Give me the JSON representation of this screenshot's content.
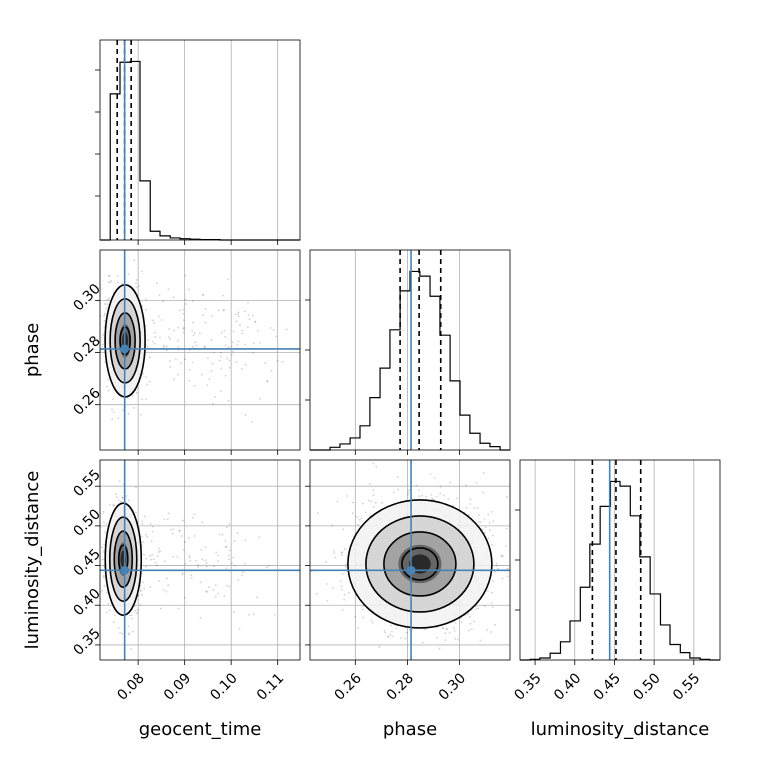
{
  "chart_data": {
    "type": "scatter",
    "kind": "corner-plot",
    "parameters": [
      "geocent_time",
      "phase",
      "luminosity_distance"
    ],
    "axis_labels": {
      "geocent_time": "geocent_time",
      "phase": "phase",
      "luminosity_distance": "luminosity_distance"
    },
    "ranges": {
      "geocent_time": [
        0.0718,
        0.1148
      ],
      "phase": [
        0.2426,
        0.3194
      ],
      "luminosity_distance": [
        0.331,
        0.583
      ]
    },
    "ticks": {
      "geocent_time": {
        "values": [
          0.08,
          0.09,
          0.1,
          0.11
        ],
        "labels": [
          "0.08",
          "0.09",
          "0.10",
          "0.11"
        ]
      },
      "phase": {
        "values": [
          0.26,
          0.28,
          0.3
        ],
        "labels": [
          "0.26",
          "0.28",
          "0.30"
        ]
      },
      "luminosity_distance": {
        "values": [
          0.35,
          0.4,
          0.45,
          0.5,
          0.55
        ],
        "labels": [
          "0.35",
          "0.40",
          "0.45",
          "0.50",
          "0.55"
        ]
      }
    },
    "truth": {
      "geocent_time": 0.0771,
      "phase": 0.2814,
      "luminosity_distance": 0.444
    },
    "quantiles": {
      "geocent_time": [
        0.0755,
        0.0771,
        0.0785
      ],
      "phase": [
        0.2772,
        0.2845,
        0.2928
      ],
      "luminosity_distance": [
        0.4222,
        0.4519,
        0.4831
      ]
    },
    "histograms": {
      "geocent_time": {
        "edges": [
          0.0718,
          0.074,
          0.0761,
          0.0783,
          0.0804,
          0.0826,
          0.0847,
          0.0869,
          0.089,
          0.0912,
          0.0933,
          0.0955,
          0.0976,
          0.0998,
          0.1019,
          0.1041,
          0.1062,
          0.1084,
          0.1105,
          0.1127,
          0.1148
        ],
        "counts": [
          0,
          351,
          427,
          429,
          142,
          21,
          10,
          5,
          3,
          2,
          1,
          1,
          0,
          0,
          0,
          0,
          0,
          0,
          0,
          0
        ]
      },
      "phase": {
        "edges": [
          0.2426,
          0.2464,
          0.2503,
          0.2541,
          0.258,
          0.2618,
          0.2656,
          0.2695,
          0.2733,
          0.2772,
          0.281,
          0.2848,
          0.2887,
          0.2925,
          0.2964,
          0.3002,
          0.304,
          0.3079,
          0.3117,
          0.3156,
          0.3194
        ],
        "counts": [
          0,
          0,
          4,
          9,
          18,
          36,
          78,
          122,
          179,
          237,
          266,
          259,
          229,
          171,
          103,
          52,
          25,
          10,
          5,
          0
        ]
      },
      "luminosity_distance": {
        "edges": [
          0.331,
          0.344,
          0.356,
          0.369,
          0.382,
          0.394,
          0.407,
          0.419,
          0.432,
          0.445,
          0.457,
          0.47,
          0.482,
          0.495,
          0.508,
          0.52,
          0.533,
          0.545,
          0.558,
          0.57,
          0.583
        ],
        "counts": [
          0,
          1,
          3,
          10,
          27,
          58,
          108,
          172,
          228,
          265,
          258,
          214,
          153,
          98,
          52,
          23,
          11,
          3,
          1,
          0
        ]
      }
    },
    "pair_peaks": {
      "phase_vs_geocent_time": {
        "x": 0.0772,
        "y": 0.2845
      },
      "luminosity_distance_vs_geocent_time": {
        "x": 0.0768,
        "y": 0.458
      },
      "luminosity_distance_vs_phase": {
        "x": 0.2848,
        "y": 0.452
      }
    },
    "colors": {
      "truth": "#4682b4",
      "contour": "#000000",
      "hist": "#000000",
      "points": "#000000"
    },
    "grid": true
  }
}
